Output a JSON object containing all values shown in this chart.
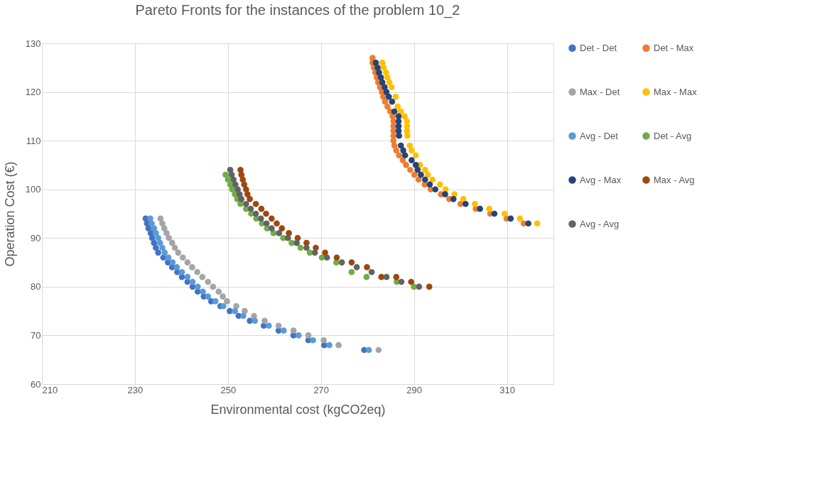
{
  "chart_data": {
    "type": "scatter",
    "title": "Pareto Fronts for the instances of the problem 10_2",
    "xlabel": "Environmental cost (kgCO2eq)",
    "ylabel": "Operation Cost (€)",
    "xlim": [
      210,
      320
    ],
    "xticks": [
      210,
      230,
      250,
      270,
      290,
      310
    ],
    "ylim": [
      60,
      130
    ],
    "yticks": [
      60,
      70,
      80,
      90,
      100,
      110,
      120,
      130
    ],
    "grid": true,
    "legend": "right",
    "marker": "circle",
    "series": [
      {
        "name": "Det - Det",
        "color": "#4472c4",
        "x": [
          232.3,
          232.6,
          232.9,
          233.4,
          233.7,
          234.1,
          234.5,
          235.0,
          236.1,
          237.1,
          238.0,
          239.1,
          240.1,
          241.3,
          242.4,
          243.5,
          244.8,
          246.4,
          248.4,
          250.4,
          252.3,
          254.7,
          257.7,
          260.9,
          264.1,
          267.3,
          270.7,
          279.3
        ],
        "values": [
          94,
          93,
          92,
          91,
          90,
          89,
          88,
          87,
          86,
          85,
          84,
          83,
          82,
          81,
          80,
          79,
          78,
          77,
          76,
          75,
          74,
          73,
          72,
          71,
          70,
          69,
          68,
          67
        ]
      },
      {
        "name": "Det - Max",
        "color": "#ed7d31",
        "x": [
          281.1,
          281.1,
          281.4,
          281.7,
          282.0,
          282.3,
          282.7,
          283.1,
          283.4,
          283.8,
          284.3,
          284.9,
          285.4,
          285.6,
          285.6,
          285.6,
          285.6,
          285.6,
          285.8,
          286.2,
          286.8,
          287.6,
          288.3,
          289.2,
          290.1,
          291.0,
          292.3,
          293.6,
          295.8,
          297.6,
          300.0,
          303.3,
          306.4,
          309.9,
          313.6
        ],
        "values": [
          127,
          126,
          125,
          124,
          123,
          122,
          121,
          120,
          119,
          118,
          117,
          116,
          115,
          114,
          113,
          112,
          111,
          110,
          109,
          108,
          107,
          106,
          105,
          104,
          103,
          102,
          101,
          100,
          99,
          98,
          97,
          96,
          95,
          94,
          93
        ]
      },
      {
        "name": "Max - Det",
        "color": "#a5a5a5",
        "x": [
          235.5,
          235.9,
          236.3,
          236.8,
          237.3,
          238.0,
          238.6,
          239.3,
          240.3,
          241.3,
          242.3,
          243.4,
          244.5,
          245.7,
          246.8,
          248.0,
          248.9,
          249.8,
          251.8,
          253.6,
          255.6,
          257.9,
          260.9,
          264.1,
          267.3,
          270.6,
          273.8,
          282.4
        ],
        "values": [
          94,
          93,
          92,
          91,
          90,
          89,
          88,
          87,
          86,
          85,
          84,
          83,
          82,
          81,
          80,
          79,
          78,
          77,
          76,
          75,
          74,
          73,
          72,
          71,
          70,
          69,
          68,
          67
        ]
      },
      {
        "name": "Max - Max",
        "color": "#ffc000",
        "x": [
          283.2,
          283.5,
          284.0,
          284.3,
          284.7,
          285.2,
          286.1,
          286.5,
          287.2,
          288.0,
          288.5,
          288.5,
          288.5,
          288.6,
          289.1,
          289.5,
          290.4,
          291.3,
          292.4,
          293.0,
          294.0,
          295.6,
          296.8,
          298.7,
          300.6,
          303.1,
          306.2,
          309.5,
          312.8,
          316.5
        ],
        "values": [
          126,
          125,
          124,
          123,
          122,
          121,
          119,
          117,
          116,
          115,
          114,
          113,
          112,
          111,
          109,
          108,
          107,
          105,
          104,
          103,
          102,
          101,
          100,
          99,
          98,
          97,
          96,
          95,
          94,
          93
        ]
      },
      {
        "name": "Avg - Det",
        "color": "#5b9bd5",
        "x": [
          233.3,
          233.6,
          234.1,
          234.5,
          235.0,
          235.4,
          235.9,
          236.4,
          237.2,
          238.1,
          239.0,
          240.1,
          241.3,
          242.4,
          243.5,
          244.6,
          245.7,
          247.3,
          249.0,
          251.5,
          253.3,
          255.8,
          258.8,
          262.0,
          265.2,
          268.3,
          271.8,
          280.3
        ],
        "values": [
          94,
          93,
          92,
          91,
          90,
          89,
          88,
          87,
          86,
          85,
          84,
          83,
          82,
          81,
          80,
          79,
          78,
          77,
          76,
          75,
          74,
          73,
          72,
          71,
          70,
          69,
          68,
          67
        ]
      },
      {
        "name": "Det - Avg",
        "color": "#70ad47",
        "x": [
          249.5,
          250.0,
          250.5,
          250.9,
          251.5,
          252.0,
          252.7,
          253.9,
          255.0,
          256.1,
          257.3,
          258.4,
          259.8,
          261.9,
          263.7,
          265.6,
          267.6,
          270.2,
          273.3,
          276.6,
          279.8,
          286.3,
          290.0
        ],
        "values": [
          103,
          102,
          101,
          100,
          99,
          98,
          97,
          96,
          95,
          94,
          93,
          92,
          91,
          90,
          89,
          88,
          87,
          86,
          85,
          83,
          82,
          81,
          80
        ]
      },
      {
        "name": "Avg - Max",
        "color": "#264478",
        "x": [
          281.8,
          282.2,
          282.5,
          282.9,
          283.2,
          283.7,
          284.1,
          284.6,
          285.3,
          285.8,
          286.7,
          286.7,
          286.7,
          286.7,
          286.8,
          287.2,
          287.7,
          288.1,
          289.5,
          290.4,
          290.8,
          291.5,
          292.4,
          293.4,
          294.6,
          296.7,
          298.5,
          301.1,
          304.2,
          307.3,
          310.8,
          314.6
        ],
        "values": [
          126,
          125,
          124,
          123,
          122,
          121,
          120,
          119,
          118,
          116,
          115,
          114,
          113,
          112,
          111,
          109,
          108,
          107,
          106,
          105,
          104,
          103,
          102,
          101,
          100,
          99,
          98,
          97,
          96,
          95,
          94,
          93
        ]
      },
      {
        "name": "Max - Avg",
        "color": "#9e480e",
        "x": [
          252.7,
          252.9,
          253.2,
          253.5,
          253.9,
          254.2,
          254.7,
          256.0,
          257.2,
          258.2,
          259.4,
          260.5,
          261.6,
          263.1,
          265.0,
          266.9,
          268.9,
          270.9,
          273.4,
          276.6,
          279.9,
          283.0,
          286.2,
          289.4,
          293.3
        ],
        "values": [
          104,
          103,
          102,
          101,
          100,
          99,
          98,
          97,
          96,
          95,
          94,
          93,
          92,
          91,
          90,
          89,
          88,
          87,
          86,
          85,
          84,
          82,
          82,
          81,
          80
        ]
      },
      {
        "name": "Avg - Avg",
        "color": "#636363",
        "x": [
          250.5,
          250.8,
          251.2,
          251.6,
          252.1,
          252.5,
          252.9,
          253.9,
          254.9,
          256.0,
          257.1,
          258.3,
          259.4,
          261.0,
          262.9,
          264.8,
          266.9,
          268.7,
          271.3,
          274.5,
          277.7,
          280.9,
          284.1,
          287.3,
          291.1
        ],
        "values": [
          104,
          103,
          102,
          101,
          100,
          99,
          98,
          97,
          96,
          95,
          94,
          93,
          92,
          91,
          90,
          89,
          88,
          87,
          86,
          85,
          84,
          83,
          82,
          81,
          80
        ]
      }
    ]
  }
}
